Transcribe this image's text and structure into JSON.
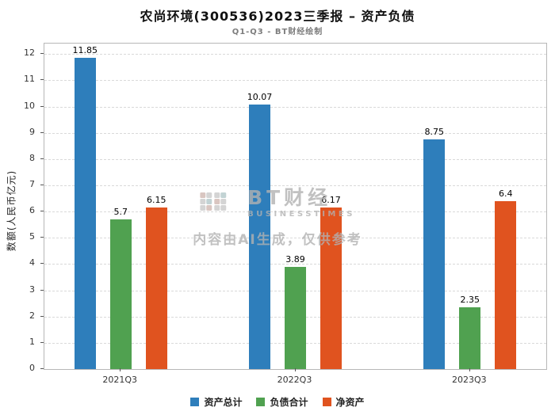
{
  "title": "农尚环境(300536)2023三季报 – 资产负债",
  "subtitle": "Q1-Q3 - BT财经绘制",
  "watermark": {
    "brand": "BT财经",
    "brand_sub": "BUSINESSTIMES",
    "note": "内容由AI生成，仅供参考"
  },
  "chart_data": {
    "type": "bar",
    "categories": [
      "2021Q3",
      "2022Q3",
      "2023Q3"
    ],
    "series": [
      {
        "name": "资产总计",
        "color": "#2e7ebb",
        "values": [
          11.85,
          10.07,
          8.75
        ]
      },
      {
        "name": "负债合计",
        "color": "#50a150",
        "values": [
          5.7,
          3.89,
          2.35
        ]
      },
      {
        "name": "净资产",
        "color": "#e0531f",
        "values": [
          6.15,
          6.17,
          6.4
        ]
      }
    ],
    "title": "农尚环境(300536)2023三季报 – 资产负债",
    "xlabel": "",
    "ylabel": "数额(人民币亿元)",
    "ylim": [
      0,
      12
    ],
    "ytick_step": 1,
    "grid": true,
    "legend_position": "bottom"
  }
}
